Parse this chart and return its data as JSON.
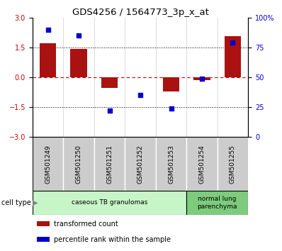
{
  "title": "GDS4256 / 1564773_3p_x_at",
  "samples": [
    "GSM501249",
    "GSM501250",
    "GSM501251",
    "GSM501252",
    "GSM501253",
    "GSM501254",
    "GSM501255"
  ],
  "red_bars": [
    1.72,
    1.42,
    -0.55,
    0.0,
    -0.72,
    -0.15,
    2.05
  ],
  "blue_pct": [
    90,
    85,
    22,
    35,
    24,
    49,
    79
  ],
  "ylim": [
    -3,
    3
  ],
  "y_right_ticks": [
    0,
    25,
    50,
    75,
    100
  ],
  "y_left_ticks": [
    -3,
    -1.5,
    0,
    1.5,
    3
  ],
  "cell_types": [
    {
      "label": "caseous TB granulomas",
      "span": [
        0,
        5
      ],
      "color": "#c8f5c8"
    },
    {
      "label": "normal lung\nparenchyma",
      "span": [
        5,
        7
      ],
      "color": "#7dcc7d"
    }
  ],
  "bar_color": "#aa1111",
  "dot_color": "#0000cc",
  "bar_width": 0.55,
  "legend_items": [
    {
      "label": "transformed count",
      "color": "#aa1111"
    },
    {
      "label": "percentile rank within the sample",
      "color": "#0000cc"
    }
  ],
  "ylabel_left_color": "#cc0000",
  "ylabel_right_color": "#0000cc",
  "dotted_line_color": "#000000",
  "zero_line_color": "#cc0000",
  "sample_box_color": "#cccccc",
  "title_size": 9.5,
  "tick_label_size": 7,
  "sample_label_size": 6.5
}
